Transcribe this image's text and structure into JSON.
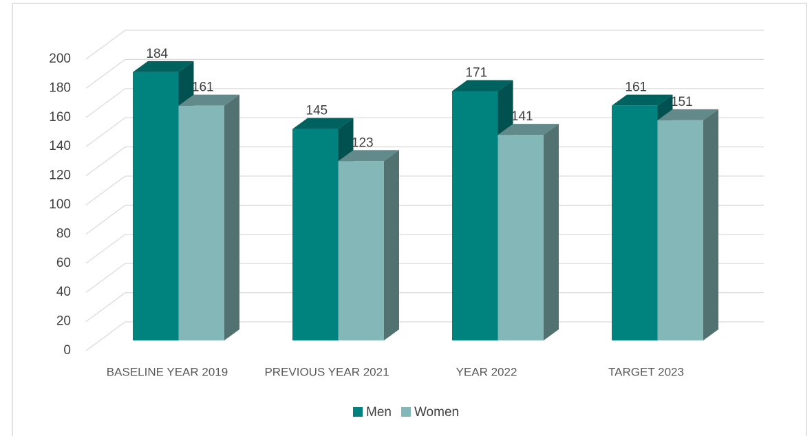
{
  "chart_data": {
    "type": "bar3d",
    "categories": [
      "BASELINE YEAR 2019",
      "PREVIOUS YEAR 2021",
      "YEAR 2022",
      "TARGET 2023"
    ],
    "series": [
      {
        "name": "Men",
        "color": "#00837f",
        "values": [
          184,
          145,
          171,
          161
        ]
      },
      {
        "name": "Women",
        "color": "#84b8b8",
        "values": [
          161,
          123,
          141,
          151
        ]
      }
    ],
    "ylim": [
      0,
      200
    ],
    "yticks": [
      0,
      20,
      40,
      60,
      80,
      100,
      120,
      140,
      160,
      180,
      200
    ],
    "grid": true,
    "legend": "bottom"
  }
}
